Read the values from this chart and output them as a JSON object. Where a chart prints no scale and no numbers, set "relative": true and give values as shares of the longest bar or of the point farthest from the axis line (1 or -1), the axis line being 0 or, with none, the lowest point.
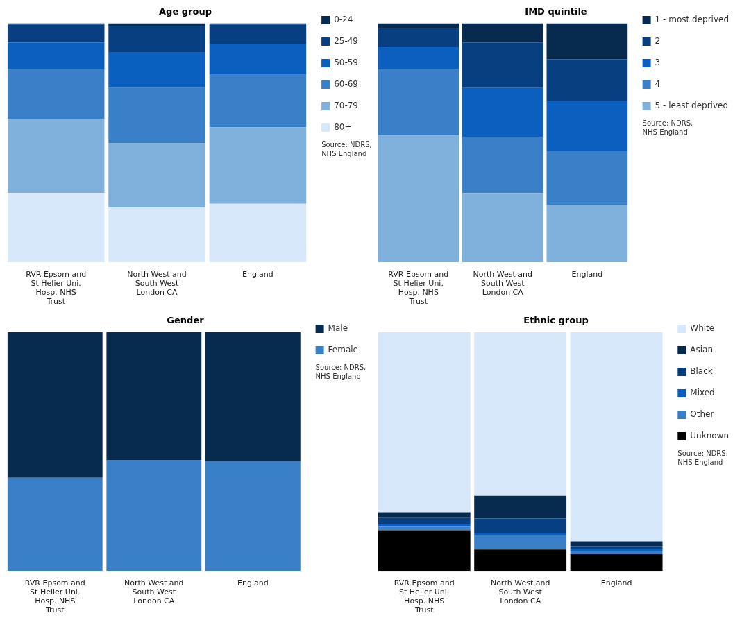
{
  "chart_data": [
    {
      "type": "bar",
      "title": "Age group",
      "stacked": true,
      "relative": true,
      "legend": "top right",
      "annotations": [
        "Source: NDRS, NHS England"
      ],
      "categories": [
        "RVR Epsom and St Helier Uni. Hosp. NHS Trust",
        "North West and South West London CA",
        "England"
      ],
      "series": [
        {
          "name": "80+",
          "color": "#d6e8fa",
          "values": [
            0.29,
            0.23,
            0.245
          ]
        },
        {
          "name": "70-79",
          "color": "#80b0dc",
          "values": [
            0.31,
            0.27,
            0.32
          ]
        },
        {
          "name": "60-69",
          "color": "#3a80c8",
          "values": [
            0.21,
            0.23,
            0.22
          ]
        },
        {
          "name": "50-59",
          "color": "#0a5fbf",
          "values": [
            0.11,
            0.15,
            0.13
          ]
        },
        {
          "name": "25-49",
          "color": "#083f80",
          "values": [
            0.075,
            0.11,
            0.08
          ]
        },
        {
          "name": "0-24",
          "color": "#072a4f",
          "values": [
            0.005,
            0.01,
            0.005
          ]
        }
      ]
    },
    {
      "type": "bar",
      "title": "IMD quintile",
      "stacked": true,
      "relative": true,
      "legend": "top right",
      "annotations": [
        "Source: NDRS, NHS England"
      ],
      "categories": [
        "RVR Epsom and St Helier Uni. Hosp. NHS Trust",
        "North West and South West London CA",
        "England"
      ],
      "series": [
        {
          "name": "5 - least deprived",
          "color": "#80b0dc",
          "values": [
            0.53,
            0.29,
            0.24
          ]
        },
        {
          "name": "4",
          "color": "#3a80c8",
          "values": [
            0.28,
            0.235,
            0.225
          ]
        },
        {
          "name": "3",
          "color": "#0a5fbf",
          "values": [
            0.09,
            0.205,
            0.21
          ]
        },
        {
          "name": "2",
          "color": "#083f80",
          "values": [
            0.08,
            0.19,
            0.175
          ]
        },
        {
          "name": "1 - most deprived",
          "color": "#072a4f",
          "values": [
            0.02,
            0.08,
            0.15
          ]
        }
      ]
    },
    {
      "type": "bar",
      "title": "Gender",
      "stacked": true,
      "relative": true,
      "legend": "top right",
      "annotations": [
        "Source: NDRS, NHS England"
      ],
      "categories": [
        "RVR Epsom and St Helier Uni. Hosp. NHS Trust",
        "North West and South West London CA",
        "England"
      ],
      "series": [
        {
          "name": "Female",
          "color": "#3a80c8",
          "values": [
            0.39,
            0.465,
            0.46
          ]
        },
        {
          "name": "Male",
          "color": "#072a4f",
          "values": [
            0.61,
            0.535,
            0.54
          ]
        }
      ]
    },
    {
      "type": "bar",
      "title": "Ethnic group",
      "stacked": true,
      "relative": true,
      "legend": "top right",
      "annotations": [
        "Source: NDRS, NHS England"
      ],
      "categories": [
        "RVR Epsom and St Helier Uni. Hosp. NHS Trust",
        "North West and South West London CA",
        "England"
      ],
      "series": [
        {
          "name": "Unknown",
          "color": "#000000",
          "values": [
            0.17,
            0.09,
            0.07
          ]
        },
        {
          "name": "Other",
          "color": "#3a80c8",
          "values": [
            0.015,
            0.06,
            0.012
          ]
        },
        {
          "name": "Mixed",
          "color": "#0a5fbf",
          "values": [
            0.01,
            0.01,
            0.01
          ]
        },
        {
          "name": "Black",
          "color": "#083f80",
          "values": [
            0.027,
            0.06,
            0.012
          ]
        },
        {
          "name": "Asian",
          "color": "#072a4f",
          "values": [
            0.024,
            0.095,
            0.02
          ]
        },
        {
          "name": "White",
          "color": "#d6e8fa",
          "values": [
            0.754,
            0.685,
            0.876
          ]
        }
      ]
    }
  ]
}
